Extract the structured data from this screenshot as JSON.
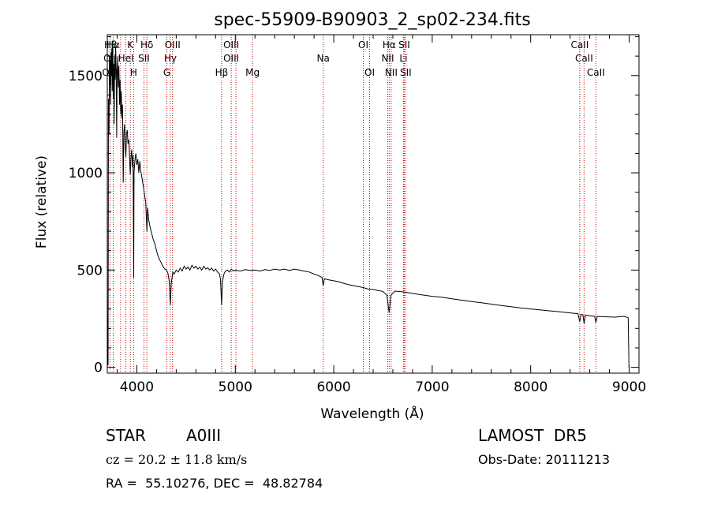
{
  "chart_data": {
    "type": "line",
    "title": "spec-55909-B90903_2_sp02-234.fits",
    "xlabel": "Wavelength (Å)",
    "ylabel": "Flux (relative)",
    "xlim": [
      3700,
      9100
    ],
    "ylim": [
      -30,
      1710
    ],
    "xticks": [
      4000,
      5000,
      6000,
      7000,
      8000,
      9000
    ],
    "yticks": [
      0,
      500,
      1000,
      1500
    ],
    "grid": false,
    "legend": "none",
    "colors": {
      "spectrum": "#000000",
      "line_marker": "#cc0000"
    },
    "series": [
      {
        "values_xy": [
          [
            3700,
            0
          ],
          [
            3703,
            260
          ],
          [
            3708,
            10
          ],
          [
            3712,
            1380
          ],
          [
            3718,
            1200
          ],
          [
            3722,
            1600
          ],
          [
            3726,
            1450
          ],
          [
            3730,
            1580
          ],
          [
            3734,
            1350
          ],
          [
            3738,
            1620
          ],
          [
            3742,
            1500
          ],
          [
            3746,
            1640
          ],
          [
            3750,
            1420
          ],
          [
            3755,
            1680
          ],
          [
            3760,
            1380
          ],
          [
            3765,
            1560
          ],
          [
            3770,
            1250
          ],
          [
            3775,
            1600
          ],
          [
            3780,
            1480
          ],
          [
            3785,
            1650
          ],
          [
            3790,
            1540
          ],
          [
            3795,
            1180
          ],
          [
            3800,
            1500
          ],
          [
            3806,
            1600
          ],
          [
            3812,
            1440
          ],
          [
            3818,
            1550
          ],
          [
            3824,
            1350
          ],
          [
            3830,
            1480
          ],
          [
            3836,
            1300
          ],
          [
            3842,
            1420
          ],
          [
            3848,
            1280
          ],
          [
            3855,
            1350
          ],
          [
            3862,
            950
          ],
          [
            3868,
            1200
          ],
          [
            3875,
            1250
          ],
          [
            3882,
            1150
          ],
          [
            3889,
            1080
          ],
          [
            3895,
            1200
          ],
          [
            3903,
            1220
          ],
          [
            3910,
            1150
          ],
          [
            3918,
            1170
          ],
          [
            3925,
            1100
          ],
          [
            3933,
            990
          ],
          [
            3940,
            1080
          ],
          [
            3948,
            1120
          ],
          [
            3955,
            1030
          ],
          [
            3962,
            1090
          ],
          [
            3968,
            460
          ],
          [
            3972,
            1000
          ],
          [
            3980,
            1060
          ],
          [
            3990,
            1100
          ],
          [
            4000,
            1040
          ],
          [
            4010,
            1070
          ],
          [
            4020,
            1000
          ],
          [
            4030,
            1060
          ],
          [
            4040,
            1010
          ],
          [
            4050,
            980
          ],
          [
            4060,
            950
          ],
          [
            4070,
            920
          ],
          [
            4080,
            880
          ],
          [
            4090,
            850
          ],
          [
            4102,
            700
          ],
          [
            4110,
            820
          ],
          [
            4120,
            760
          ],
          [
            4135,
            720
          ],
          [
            4150,
            690
          ],
          [
            4165,
            660
          ],
          [
            4180,
            640
          ],
          [
            4195,
            610
          ],
          [
            4210,
            580
          ],
          [
            4225,
            560
          ],
          [
            4240,
            545
          ],
          [
            4255,
            530
          ],
          [
            4270,
            515
          ],
          [
            4285,
            505
          ],
          [
            4300,
            500
          ],
          [
            4315,
            485
          ],
          [
            4330,
            440
          ],
          [
            4340,
            320
          ],
          [
            4350,
            430
          ],
          [
            4365,
            490
          ],
          [
            4380,
            480
          ],
          [
            4400,
            500
          ],
          [
            4420,
            490
          ],
          [
            4440,
            510
          ],
          [
            4460,
            495
          ],
          [
            4480,
            520
          ],
          [
            4500,
            505
          ],
          [
            4520,
            515
          ],
          [
            4540,
            500
          ],
          [
            4560,
            525
          ],
          [
            4580,
            510
          ],
          [
            4600,
            520
          ],
          [
            4620,
            505
          ],
          [
            4640,
            515
          ],
          [
            4660,
            500
          ],
          [
            4680,
            520
          ],
          [
            4700,
            505
          ],
          [
            4720,
            512
          ],
          [
            4740,
            500
          ],
          [
            4760,
            510
          ],
          [
            4780,
            495
          ],
          [
            4800,
            505
          ],
          [
            4820,
            490
          ],
          [
            4840,
            480
          ],
          [
            4850,
            450
          ],
          [
            4861,
            320
          ],
          [
            4870,
            440
          ],
          [
            4885,
            480
          ],
          [
            4900,
            495
          ],
          [
            4920,
            500
          ],
          [
            4940,
            490
          ],
          [
            4960,
            505
          ],
          [
            4980,
            495
          ],
          [
            5000,
            500
          ],
          [
            5050,
            495
          ],
          [
            5100,
            502
          ],
          [
            5150,
            498
          ],
          [
            5200,
            500
          ],
          [
            5250,
            495
          ],
          [
            5300,
            502
          ],
          [
            5350,
            498
          ],
          [
            5400,
            505
          ],
          [
            5450,
            500
          ],
          [
            5500,
            505
          ],
          [
            5550,
            498
          ],
          [
            5600,
            505
          ],
          [
            5650,
            500
          ],
          [
            5700,
            495
          ],
          [
            5750,
            490
          ],
          [
            5800,
            480
          ],
          [
            5850,
            470
          ],
          [
            5880,
            462
          ],
          [
            5893,
            420
          ],
          [
            5905,
            455
          ],
          [
            5950,
            450
          ],
          [
            6000,
            445
          ],
          [
            6050,
            440
          ],
          [
            6100,
            432
          ],
          [
            6150,
            425
          ],
          [
            6200,
            420
          ],
          [
            6250,
            415
          ],
          [
            6300,
            410
          ],
          [
            6350,
            402
          ],
          [
            6400,
            400
          ],
          [
            6450,
            395
          ],
          [
            6500,
            390
          ],
          [
            6540,
            370
          ],
          [
            6563,
            280
          ],
          [
            6580,
            370
          ],
          [
            6620,
            392
          ],
          [
            6700,
            388
          ],
          [
            6800,
            380
          ],
          [
            6900,
            372
          ],
          [
            7000,
            365
          ],
          [
            7100,
            360
          ],
          [
            7200,
            352
          ],
          [
            7300,
            345
          ],
          [
            7400,
            338
          ],
          [
            7500,
            332
          ],
          [
            7600,
            325
          ],
          [
            7700,
            318
          ],
          [
            7800,
            312
          ],
          [
            7900,
            305
          ],
          [
            8000,
            300
          ],
          [
            8100,
            295
          ],
          [
            8200,
            290
          ],
          [
            8300,
            285
          ],
          [
            8400,
            280
          ],
          [
            8480,
            276
          ],
          [
            8498,
            235
          ],
          [
            8510,
            272
          ],
          [
            8530,
            270
          ],
          [
            8542,
            225
          ],
          [
            8555,
            268
          ],
          [
            8600,
            265
          ],
          [
            8650,
            262
          ],
          [
            8662,
            230
          ],
          [
            8675,
            262
          ],
          [
            8750,
            260
          ],
          [
            8850,
            258
          ],
          [
            8950,
            262
          ],
          [
            8990,
            255
          ],
          [
            8998,
            0
          ],
          [
            9000,
            0
          ]
        ]
      }
    ],
    "annotations": [
      {
        "label": "Hβ",
        "x": 3735,
        "row": 0
      },
      {
        "label": "Hα",
        "x": 3760,
        "row": 0
      },
      {
        "label": "K",
        "x": 3934,
        "row": 0
      },
      {
        "label": "Hδ",
        "x": 4102,
        "row": 0
      },
      {
        "label": "OIII",
        "x": 4363,
        "row": 0
      },
      {
        "label": "OIII",
        "x": 4959,
        "row": 0
      },
      {
        "label": "OI",
        "x": 6300,
        "row": 0
      },
      {
        "label": "Hα",
        "x": 6563,
        "row": 0
      },
      {
        "label": "SII",
        "x": 6716,
        "row": 0
      },
      {
        "label": "CaII",
        "x": 8498,
        "row": 0
      },
      {
        "label": "OII",
        "x": 3727,
        "row": 1
      },
      {
        "label": "HeI",
        "x": 3889,
        "row": 1
      },
      {
        "label": "SII",
        "x": 4072,
        "row": 1
      },
      {
        "label": "Hγ",
        "x": 4340,
        "row": 1
      },
      {
        "label": "OIII",
        "x": 4959,
        "row": 1
      },
      {
        "label": "Na",
        "x": 5893,
        "row": 1
      },
      {
        "label": "NII",
        "x": 6548,
        "row": 1
      },
      {
        "label": "Li",
        "x": 6708,
        "row": 1
      },
      {
        "label": "CaII",
        "x": 8542,
        "row": 1
      },
      {
        "label": "OIII",
        "x": 3727,
        "row": 2
      },
      {
        "label": "H",
        "x": 3968,
        "row": 2
      },
      {
        "label": "G",
        "x": 4305,
        "row": 2
      },
      {
        "label": "Hβ",
        "x": 4861,
        "row": 2
      },
      {
        "label": "Mg",
        "x": 5175,
        "row": 2
      },
      {
        "label": "OI",
        "x": 6364,
        "row": 2
      },
      {
        "label": "NII",
        "x": 6583,
        "row": 2
      },
      {
        "label": "SII",
        "x": 6731,
        "row": 2
      },
      {
        "label": "CaII",
        "x": 8662,
        "row": 2
      }
    ],
    "marker_lines": [
      3727,
      3760,
      3835,
      3889,
      3934,
      3968,
      4072,
      4102,
      4305,
      4340,
      4363,
      4861,
      4959,
      5007,
      5175,
      5893,
      6300,
      6364,
      6548,
      6563,
      6583,
      6708,
      6716,
      6731,
      8498,
      8542,
      8662
    ]
  },
  "info": {
    "object_class": "STAR",
    "subclass": "A0III",
    "survey": "LAMOST  DR5",
    "redshift": "cz = 20.2 ± 11.8 km/s",
    "obs_date": "Obs-Date: 20111213",
    "coords": "RA =  55.10276, DEC =  48.82784"
  }
}
